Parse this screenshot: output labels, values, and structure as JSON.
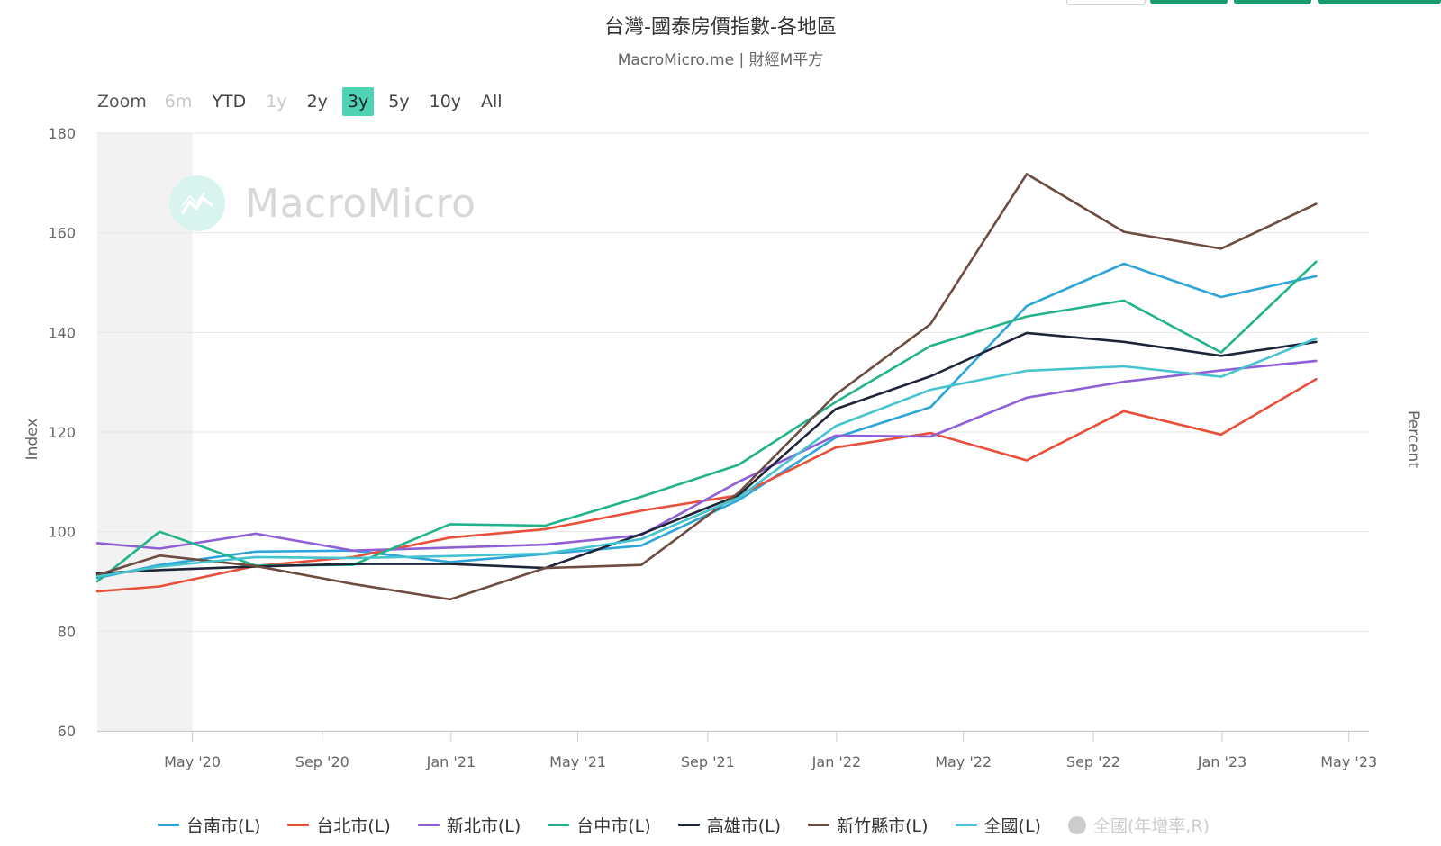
{
  "title": "台灣-國泰房價指數-各地區",
  "subtitle": "MacroMicro.me | 財經M平方",
  "watermark": "MacroMicro",
  "colors": {
    "tainan": "#2ea5d8",
    "taipei": "#e8503a",
    "newtaipei": "#8e5fd6",
    "taichung": "#22b38a",
    "kaohsiung": "#1f2538",
    "hsinchu": "#6d4c41",
    "national": "#45c4cf",
    "disabled": "#cccccc",
    "zoom_active": "#4fd3b4",
    "button_green": "#1a9b6f"
  },
  "zoom": {
    "label": "Zoom",
    "buttons": [
      {
        "label": "6m",
        "state": "disabled"
      },
      {
        "label": "YTD",
        "state": "normal"
      },
      {
        "label": "1y",
        "state": "disabled"
      },
      {
        "label": "2y",
        "state": "normal"
      },
      {
        "label": "3y",
        "state": "active"
      },
      {
        "label": "5y",
        "state": "normal"
      },
      {
        "label": "10y",
        "state": "normal"
      },
      {
        "label": "All",
        "state": "normal"
      }
    ]
  },
  "chart_data": {
    "type": "line",
    "title": "台灣-國泰房價指數-各地區",
    "subtitle": "MacroMicro.me | 財經M平方",
    "ylabel": "Index",
    "ylabel_right": "Percent",
    "ylim": [
      60,
      180
    ],
    "yticks": [
      60,
      80,
      100,
      120,
      140,
      160,
      180
    ],
    "xlim": [
      "2020-02-01",
      "2023-05-20"
    ],
    "xticks": [
      {
        "date": "2020-05-01",
        "label": "May '20"
      },
      {
        "date": "2020-09-01",
        "label": "Sep '20"
      },
      {
        "date": "2021-01-01",
        "label": "Jan '21"
      },
      {
        "date": "2021-05-01",
        "label": "May '21"
      },
      {
        "date": "2021-09-01",
        "label": "Sep '21"
      },
      {
        "date": "2022-01-01",
        "label": "Jan '22"
      },
      {
        "date": "2022-05-01",
        "label": "May '22"
      },
      {
        "date": "2022-09-01",
        "label": "Sep '22"
      },
      {
        "date": "2023-01-01",
        "label": "Jan '23"
      },
      {
        "date": "2023-05-01",
        "label": "May '23"
      }
    ],
    "x": [
      "2020-02-01",
      "2020-03-31",
      "2020-06-30",
      "2020-09-30",
      "2020-12-31",
      "2021-03-31",
      "2021-06-30",
      "2021-09-30",
      "2021-12-31",
      "2022-03-31",
      "2022-06-30",
      "2022-09-30",
      "2022-12-31",
      "2023-03-31"
    ],
    "grid": true,
    "legend_position": "bottom",
    "series": [
      {
        "name": "台南市(L)",
        "color_key": "tainan",
        "values": [
          90.7,
          93.3,
          96.0,
          96.2,
          93.9,
          95.5,
          97.2,
          106.3,
          118.9,
          125.0,
          145.3,
          153.8,
          147.1,
          151.3
        ]
      },
      {
        "name": "台北市(L)",
        "color_key": "taipei",
        "values": [
          88.0,
          89.0,
          93.1,
          94.9,
          98.8,
          100.5,
          104.2,
          107.3,
          116.9,
          119.8,
          114.3,
          124.2,
          119.5,
          130.6
        ]
      },
      {
        "name": "新北市(L)",
        "color_key": "newtaipei",
        "values": [
          97.7,
          96.6,
          99.6,
          96.2,
          96.8,
          97.4,
          99.3,
          110.0,
          119.3,
          119.1,
          126.9,
          130.1,
          132.4,
          134.3
        ]
      },
      {
        "name": "台中市(L)",
        "color_key": "taichung",
        "values": [
          90.0,
          100.0,
          93.2,
          93.3,
          101.5,
          101.2,
          107.0,
          113.4,
          126.0,
          137.3,
          143.2,
          146.4,
          136.0,
          154.2
        ]
      },
      {
        "name": "高雄市(L)",
        "color_key": "kaohsiung",
        "values": [
          91.6,
          92.3,
          93.0,
          93.5,
          93.5,
          92.7,
          99.5,
          107.3,
          124.6,
          131.2,
          139.9,
          138.1,
          135.3,
          138.1
        ]
      },
      {
        "name": "新竹縣市(L)",
        "color_key": "hsinchu",
        "values": [
          91.3,
          95.2,
          93.1,
          89.5,
          86.4,
          92.7,
          93.3,
          107.8,
          127.5,
          141.7,
          171.8,
          160.2,
          156.8,
          165.8
        ]
      },
      {
        "name": "全國(L)",
        "color_key": "national",
        "values": [
          91.0,
          93.0,
          94.9,
          94.7,
          95.1,
          95.6,
          98.5,
          106.8,
          121.2,
          128.5,
          132.3,
          133.2,
          131.1,
          138.8
        ]
      }
    ],
    "hidden_series": [
      {
        "name": "全國(年增率,R)"
      }
    ],
    "shaded_region": [
      "2020-02-01",
      "2020-05-01"
    ]
  }
}
